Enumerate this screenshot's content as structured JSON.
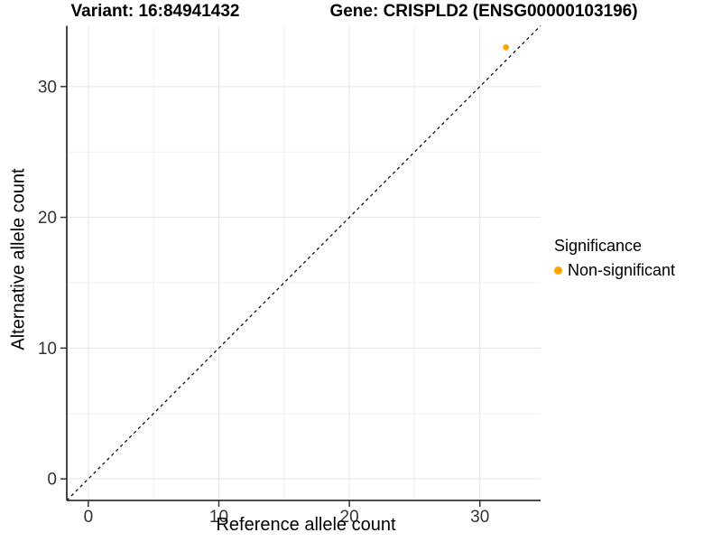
{
  "titles": {
    "variant": "Variant: 16:84941432",
    "gene": "Gene: CRISPLD2 (ENSG00000103196)"
  },
  "chart_data": {
    "type": "scatter",
    "title_left": "Variant: 16:84941432",
    "title_right": "Gene: CRISPLD2 (ENSG00000103196)",
    "xlabel": "Reference allele count",
    "ylabel": "Alternative allele count",
    "xlim": [
      -1.65,
      34.65
    ],
    "ylim": [
      -1.65,
      34.65
    ],
    "xticks": [
      0,
      10,
      20,
      30
    ],
    "yticks": [
      0,
      10,
      20,
      30
    ],
    "xticks_minor": [
      5,
      15,
      25
    ],
    "yticks_minor": [
      5,
      15,
      25
    ],
    "grid": "on",
    "points": [
      {
        "x": 32,
        "y": 33,
        "series": "Non-significant"
      }
    ],
    "reference_line": {
      "kind": "diagonal",
      "intercept": 0,
      "slope": 1,
      "style": "dashed",
      "color": "#000000"
    },
    "legend": {
      "title": "Significance",
      "position": "right",
      "items": [
        {
          "label": "Non-significant",
          "color": "#FFA500"
        }
      ]
    },
    "colors": {
      "point": "#FFA500",
      "axis_line": "#333333",
      "tick": "#333333",
      "grid_major": "#e6e6e6",
      "grid_minor": "#f1f1f1",
      "text": "#333333"
    }
  }
}
